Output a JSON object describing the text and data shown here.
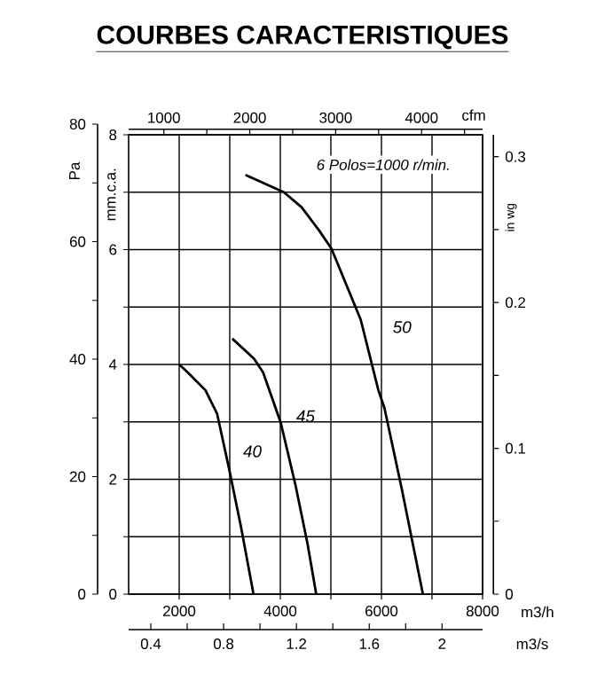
{
  "chart_data": {
    "type": "line",
    "title": "COURBES CARACTERISTIQUES",
    "xlabel": "m3/h",
    "ylabel": "mm.c.a.",
    "y2label": "in wg",
    "y3label": "Pa",
    "x2label": "cfm",
    "annotations": [
      "6 Polos=1000 r/min.",
      "0.4",
      "0.8",
      "1.2",
      "1.6",
      "2",
      "m3/s"
    ],
    "grid": true,
    "xlim": [
      1000,
      8000
    ],
    "xticks": [
      2000,
      {
        "value": 3000,
        "label": null
      },
      4000,
      {
        "value": 5000,
        "label": null
      },
      6000,
      {
        "value": 7000,
        "label": null
      },
      8000
    ],
    "ylim": [
      0,
      8
    ],
    "yticks": [
      0,
      {
        "value": 1,
        "label": null
      },
      2,
      {
        "value": 3,
        "label": null
      },
      4,
      {
        "value": 5,
        "label": null
      },
      6,
      {
        "value": 7,
        "label": null
      },
      8
    ],
    "x2lim": [
      590,
      4710
    ],
    "x2ticks": [
      1000,
      {
        "value": 1500,
        "label": null
      },
      2000,
      {
        "value": 2500,
        "label": null
      },
      3000,
      {
        "value": 3500,
        "label": null
      },
      4000,
      {
        "value": 4500,
        "label": null
      }
    ],
    "y2lim": [
      0,
      0.315
    ],
    "y2ticks": [
      0,
      {
        "value": 0.05,
        "label": null
      },
      0.1,
      {
        "value": 0.15,
        "label": null
      },
      0.2,
      {
        "value": 0.25,
        "label": null
      },
      0.3
    ],
    "y3lim": [
      0,
      80
    ],
    "y3ticks": [
      0,
      {
        "value": 10,
        "label": null
      },
      20,
      {
        "value": 30,
        "label": null
      },
      40,
      {
        "value": 50,
        "label": null
      },
      60,
      {
        "value": 70,
        "label": null
      },
      80
    ],
    "series": [
      {
        "name": "40",
        "color": "#000000",
        "x": [
          2000,
          2170,
          2520,
          2750,
          2980,
          3220,
          3470
        ],
        "values": [
          4.0,
          3.86,
          3.55,
          3.14,
          2.21,
          1.18,
          0
        ]
      },
      {
        "name": "45",
        "color": "#000000",
        "x": [
          3050,
          3480,
          3660,
          4010,
          4300,
          4540,
          4710
        ],
        "values": [
          4.45,
          4.1,
          3.86,
          2.98,
          1.9,
          0.87,
          0
        ]
      },
      {
        "name": "50",
        "color": "#000000",
        "x": [
          3310,
          4070,
          4420,
          4770,
          5010,
          5590,
          5940,
          6060,
          6410,
          6820
        ],
        "values": [
          7.3,
          7.0,
          6.74,
          6.33,
          6.02,
          4.78,
          3.55,
          3.24,
          1.8,
          0
        ]
      }
    ]
  }
}
